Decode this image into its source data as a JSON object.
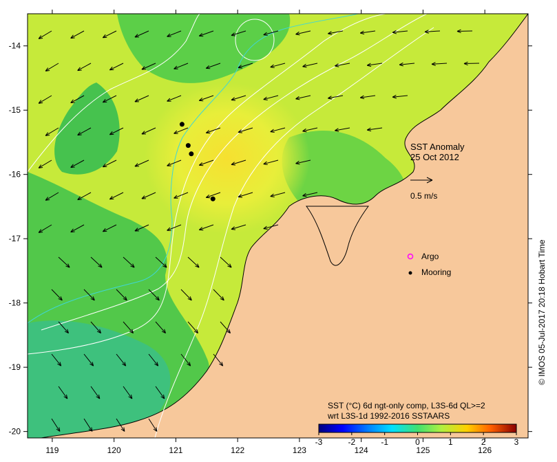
{
  "map": {
    "title": "SST Anomaly",
    "date": "25 Oct 2012",
    "vector_scale_label": "0.5 m/s",
    "x_ticks": [
      "119",
      "120",
      "121",
      "122",
      "123",
      "124",
      "125",
      "126"
    ],
    "y_ticks": [
      "-14",
      "-15",
      "-16",
      "-17",
      "-18",
      "-19",
      "-20"
    ],
    "lon_range": [
      118.6,
      126.7
    ],
    "lat_range": [
      -20.1,
      -13.5
    ],
    "colors": {
      "land": "#f7c89b",
      "ocean_green": "#4cc84c",
      "ocean_yellow": "#d8ee3a",
      "contour": "#ffffff",
      "track": "#3fd6d6"
    }
  },
  "legend": {
    "argo_label": "Argo",
    "mooring_label": "Mooring",
    "argo_color": "#ff00ff",
    "mooring_color": "#000000"
  },
  "colorbar": {
    "caption_line1": "SST (°C) 6d ngt-only comp, L3S-6d QL>=2",
    "caption_line2": "wrt L3S-1d 1992-2016 SSTAARS",
    "ticks": [
      "-3",
      "-2",
      "-1",
      "0",
      "1",
      "2",
      "3"
    ],
    "range": [
      -3,
      3
    ]
  },
  "moorings": [
    {
      "lon": 121.1,
      "lat": -15.22
    },
    {
      "lon": 121.2,
      "lat": -15.55
    },
    {
      "lon": 121.25,
      "lat": -15.68
    },
    {
      "lon": 121.6,
      "lat": -16.38
    }
  ],
  "credit": "© IMOS 05-Jul-2017 20:18 Hobart Time"
}
